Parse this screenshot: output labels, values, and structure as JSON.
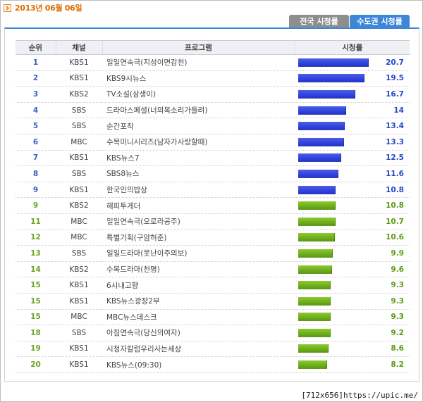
{
  "header": {
    "date": "2013년 06월 06일",
    "icon": "chevron-right-icon",
    "accent": "#e06a00"
  },
  "tabs": [
    {
      "label": "전국 시청률",
      "active": false
    },
    {
      "label": "수도권 시청률",
      "active": true
    }
  ],
  "table": {
    "columns": {
      "rank": "순위",
      "channel": "채널",
      "program": "프로그램",
      "rating": "시청률"
    },
    "max_rating": 24,
    "rows": [
      {
        "rank": "1",
        "channel": "KBS1",
        "program": "일일연속극(지성이면감천)",
        "rating": "20.7",
        "tone": "hi"
      },
      {
        "rank": "2",
        "channel": "KBS1",
        "program": "KBS9시뉴스",
        "rating": "19.5",
        "tone": "hi"
      },
      {
        "rank": "3",
        "channel": "KBS2",
        "program": "TV소설(삼생이)",
        "rating": "16.7",
        "tone": "hi"
      },
      {
        "rank": "4",
        "channel": "SBS",
        "program": "드라마스페셜(너의목소리가들려)",
        "rating": "14",
        "tone": "hi"
      },
      {
        "rank": "5",
        "channel": "SBS",
        "program": "순간포착",
        "rating": "13.4",
        "tone": "hi"
      },
      {
        "rank": "6",
        "channel": "MBC",
        "program": "수목미니시리즈(남자가사랑할때)",
        "rating": "13.3",
        "tone": "hi"
      },
      {
        "rank": "7",
        "channel": "KBS1",
        "program": "KBS뉴스7",
        "rating": "12.5",
        "tone": "hi"
      },
      {
        "rank": "8",
        "channel": "SBS",
        "program": "SBS8뉴스",
        "rating": "11.6",
        "tone": "hi"
      },
      {
        "rank": "9",
        "channel": "KBS1",
        "program": "한국인의밥상",
        "rating": "10.8",
        "tone": "hi"
      },
      {
        "rank": "9",
        "channel": "KBS2",
        "program": "해피투게더",
        "rating": "10.8",
        "tone": "lo"
      },
      {
        "rank": "11",
        "channel": "MBC",
        "program": "일일연속극(오로라공주)",
        "rating": "10.7",
        "tone": "lo"
      },
      {
        "rank": "12",
        "channel": "MBC",
        "program": "특별기획(구암허준)",
        "rating": "10.6",
        "tone": "lo"
      },
      {
        "rank": "13",
        "channel": "SBS",
        "program": "일일드라마(못난이주의보)",
        "rating": "9.9",
        "tone": "lo"
      },
      {
        "rank": "14",
        "channel": "KBS2",
        "program": "수목드라마(천명)",
        "rating": "9.6",
        "tone": "lo"
      },
      {
        "rank": "15",
        "channel": "KBS1",
        "program": "6시내고향",
        "rating": "9.3",
        "tone": "lo"
      },
      {
        "rank": "15",
        "channel": "KBS1",
        "program": "KBS뉴스광장2부",
        "rating": "9.3",
        "tone": "lo"
      },
      {
        "rank": "15",
        "channel": "MBC",
        "program": "MBC뉴스데스크",
        "rating": "9.3",
        "tone": "lo"
      },
      {
        "rank": "18",
        "channel": "SBS",
        "program": "아침연속극(당신의여자)",
        "rating": "9.2",
        "tone": "lo"
      },
      {
        "rank": "19",
        "channel": "KBS1",
        "program": "시청자칼럼우리사는세상",
        "rating": "8.6",
        "tone": "lo"
      },
      {
        "rank": "20",
        "channel": "KBS1",
        "program": "KBS뉴스(09:30)",
        "rating": "8.2",
        "tone": "lo"
      }
    ]
  },
  "footer": {
    "watermark": "[712x656]https://upic.me/"
  }
}
